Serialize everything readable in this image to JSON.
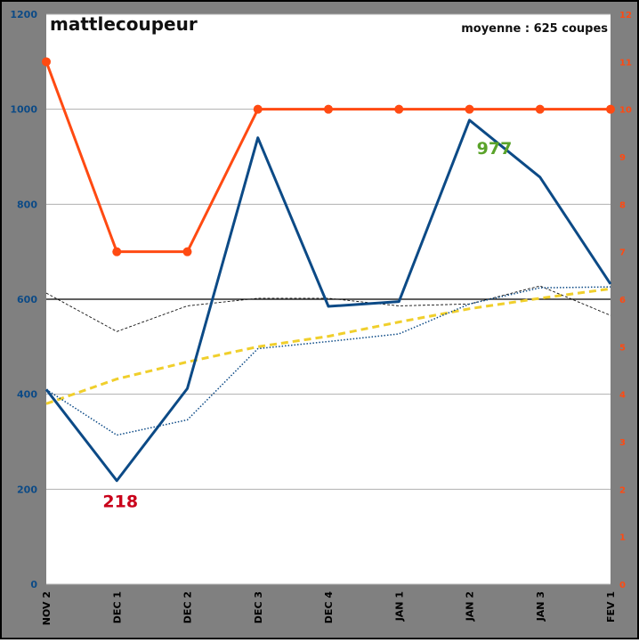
{
  "chart_data": {
    "type": "line",
    "title": "mattlecoupeur",
    "subtitle": "moyenne : 625 coupes",
    "xlabel": "",
    "ylabel": "",
    "categories": [
      "NOV 2",
      "DEC 1",
      "DEC 2",
      "DEC 3",
      "DEC 4",
      "JAN 1",
      "JAN 2",
      "JAN 3",
      "FEV 1"
    ],
    "y_left": {
      "min": 0,
      "max": 1200,
      "ticks": [
        0,
        200,
        400,
        600,
        800,
        1000,
        1200
      ]
    },
    "y_right": {
      "min": 0,
      "max": 12,
      "ticks": [
        0,
        1,
        2,
        3,
        4,
        5,
        6,
        7,
        8,
        9,
        10,
        11,
        12
      ]
    },
    "grid": true,
    "reference_line": 600,
    "series": [
      {
        "axis": "left",
        "style": "solid",
        "color": "#0c4a86",
        "values": [
          410,
          218,
          412,
          940,
          585,
          595,
          977,
          857,
          632
        ]
      },
      {
        "axis": "right",
        "style": "solid-markers",
        "color": "#ff4a12",
        "values": [
          11,
          7,
          7,
          10,
          10,
          10,
          10,
          10,
          10
        ]
      },
      {
        "axis": "left",
        "style": "dotted",
        "color": "#0c4a86",
        "values": [
          410,
          314,
          346,
          496,
          511,
          527,
          590,
          624,
          626
        ]
      },
      {
        "axis": "left",
        "style": "dashed",
        "color": "#111111",
        "values": [
          613,
          532,
          586,
          602,
          602,
          586,
          590,
          628,
          566
        ]
      },
      {
        "axis": "left",
        "style": "trend",
        "color": "#f0cf2c",
        "values": [
          380,
          432,
          468,
          500,
          522,
          552,
          580,
          602,
          622
        ]
      }
    ],
    "annotations": [
      {
        "text": "218",
        "category": "DEC 1",
        "value": 218,
        "color": "#c9001a"
      },
      {
        "text": "977",
        "category": "JAN 2",
        "value": 977,
        "color": "#5aa32a"
      }
    ],
    "colors": {
      "frame": "#808080",
      "plot_bg": "#ffffff",
      "gridline": "#b0b0b0",
      "left_axis_text": "#0c4a86",
      "right_axis_text": "#ff4a12"
    }
  }
}
